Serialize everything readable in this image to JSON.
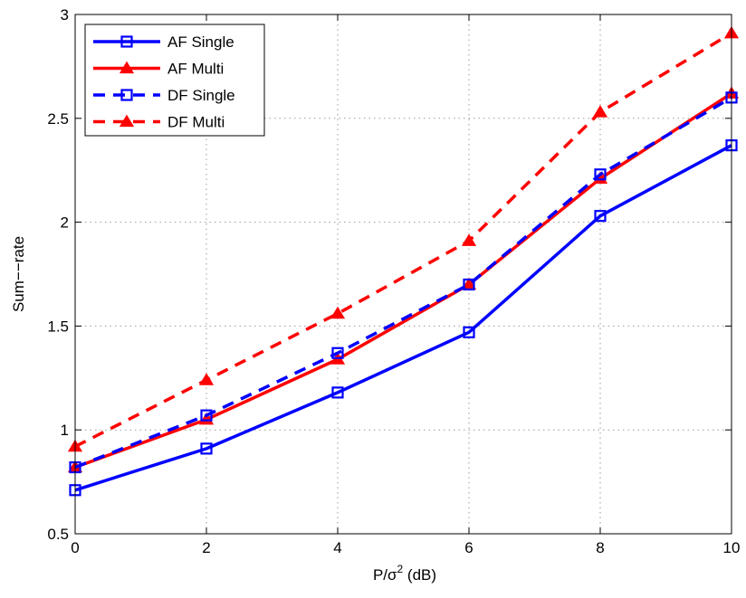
{
  "chart_data": {
    "type": "line",
    "title": "",
    "xlabel": "P/σ",
    "xlabel_superscript": "2",
    "xlabel_suffix": " (dB)",
    "ylabel": "Sum−−rate",
    "xlim": [
      0,
      10
    ],
    "ylim": [
      0.5,
      3
    ],
    "x_ticks": [
      0,
      2,
      4,
      6,
      8,
      10
    ],
    "y_ticks": [
      0.5,
      1,
      1.5,
      2,
      2.5,
      3
    ],
    "x_tick_labels": [
      "0",
      "2",
      "4",
      "6",
      "8",
      "10"
    ],
    "y_tick_labels": [
      "0.5",
      "1",
      "1.5",
      "2",
      "2.5",
      "3"
    ],
    "grid": true,
    "legend_position": "top-left",
    "x": [
      0,
      2,
      4,
      6,
      8,
      10
    ],
    "series": [
      {
        "name": "AF Single",
        "values": [
          0.71,
          0.91,
          1.18,
          1.47,
          2.03,
          2.37
        ],
        "color": "#0000ff",
        "dash": "solid",
        "marker": "square"
      },
      {
        "name": "AF Multi",
        "values": [
          0.82,
          1.05,
          1.34,
          1.7,
          2.21,
          2.62
        ],
        "color": "#ff0000",
        "dash": "solid",
        "marker": "triangle"
      },
      {
        "name": "DF Single",
        "values": [
          0.82,
          1.07,
          1.37,
          1.7,
          2.23,
          2.6
        ],
        "color": "#0000ff",
        "dash": "dashed",
        "marker": "square"
      },
      {
        "name": "DF Multi",
        "values": [
          0.92,
          1.24,
          1.56,
          1.91,
          2.53,
          2.91
        ],
        "color": "#ff0000",
        "dash": "dashed",
        "marker": "triangle"
      }
    ]
  }
}
